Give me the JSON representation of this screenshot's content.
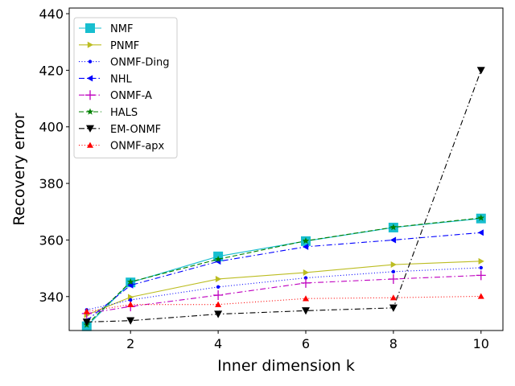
{
  "chart_data": {
    "type": "line",
    "title": "",
    "xlabel": "Inner dimension k",
    "ylabel": "Recovery error",
    "x": [
      1,
      2,
      4,
      6,
      8,
      10
    ],
    "xticks": [
      "2",
      "4",
      "6",
      "8",
      "10"
    ],
    "yticks": [
      "340",
      "360",
      "380",
      "400",
      "420",
      "440"
    ],
    "xlim": [
      0.6,
      10.5
    ],
    "ylim": [
      328,
      442
    ],
    "grid": false,
    "legend_position": "top-left",
    "series": [
      {
        "name": "NMF",
        "color": "#17becf",
        "marker": "square",
        "dash": "solid",
        "values": [
          329.5,
          345.0,
          354.2,
          359.6,
          364.4,
          367.6
        ]
      },
      {
        "name": "PNMF",
        "color": "#bcbd22",
        "marker": "triangle-right",
        "dash": "solid",
        "values": [
          333.5,
          339.8,
          346.2,
          348.5,
          351.3,
          352.5
        ]
      },
      {
        "name": "ONMF-Ding",
        "color": "#0000ff",
        "marker": "dot",
        "dash": "dotted",
        "values": [
          335.3,
          338.8,
          343.4,
          346.6,
          348.8,
          350.2
        ]
      },
      {
        "name": "NHL",
        "color": "#0000ff",
        "marker": "triangle-left",
        "dash": "dashdot",
        "values": [
          331.5,
          344.0,
          352.4,
          357.6,
          360.0,
          362.6
        ]
      },
      {
        "name": "ONMF-A",
        "color": "#bf00bf",
        "marker": "plus",
        "dash": "dashdot",
        "values": [
          334.0,
          336.5,
          340.5,
          344.8,
          346.2,
          347.5
        ]
      },
      {
        "name": "HALS",
        "color": "#008000",
        "marker": "star",
        "dash": "dashed",
        "values": [
          330.0,
          345.2,
          353.2,
          359.7,
          364.5,
          367.8
        ]
      },
      {
        "name": "EM-ONMF",
        "color": "#000000",
        "marker": "triangle-down",
        "dash": "dashdot",
        "values": [
          331.0,
          331.5,
          333.8,
          335.0,
          336.0,
          420.0
        ]
      },
      {
        "name": "ONMF-apx",
        "color": "#ff0000",
        "marker": "triangle-up",
        "dash": "dotted",
        "values": [
          334.7,
          337.2,
          337.2,
          339.3,
          339.6,
          340.1
        ]
      }
    ]
  }
}
